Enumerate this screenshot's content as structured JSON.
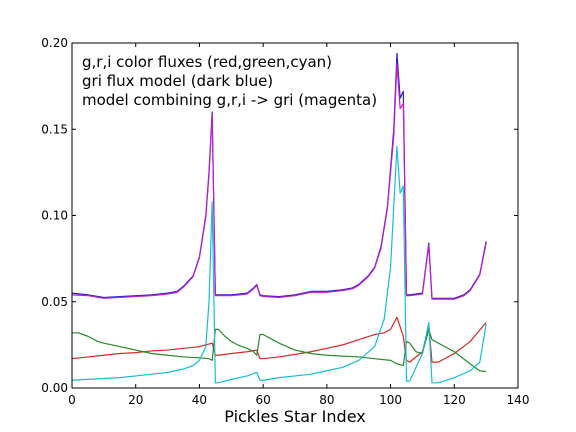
{
  "chart_data": {
    "type": "line",
    "xlabel": "Pickles Star Index",
    "ylabel": "",
    "xlim": [
      0,
      140
    ],
    "ylim": [
      0.0,
      0.2
    ],
    "x_ticks": [
      "0",
      "20",
      "40",
      "60",
      "80",
      "100",
      "120",
      "140"
    ],
    "y_ticks": [
      "0.00",
      "0.05",
      "0.10",
      "0.15",
      "0.20"
    ],
    "grid": false,
    "annotations": [
      "g,r,i color fluxes (red,green,cyan)",
      "gri flux model (dark blue)",
      "model combining g,r,i -> gri (magenta)"
    ],
    "series": [
      {
        "color": "#d62728",
        "points": [
          [
            0,
            0.017
          ],
          [
            5,
            0.018
          ],
          [
            10,
            0.019
          ],
          [
            15,
            0.02
          ],
          [
            20,
            0.0205
          ],
          [
            25,
            0.0215
          ],
          [
            30,
            0.022
          ],
          [
            35,
            0.023
          ],
          [
            38,
            0.0235
          ],
          [
            40,
            0.024
          ],
          [
            42,
            0.025
          ],
          [
            44,
            0.026
          ],
          [
            45,
            0.019
          ],
          [
            46,
            0.019
          ],
          [
            50,
            0.02
          ],
          [
            55,
            0.021
          ],
          [
            58,
            0.022
          ],
          [
            59,
            0.017
          ],
          [
            60,
            0.017
          ],
          [
            65,
            0.018
          ],
          [
            70,
            0.0195
          ],
          [
            75,
            0.021
          ],
          [
            80,
            0.023
          ],
          [
            85,
            0.025
          ],
          [
            90,
            0.028
          ],
          [
            95,
            0.031
          ],
          [
            98,
            0.032
          ],
          [
            100,
            0.034
          ],
          [
            102,
            0.041
          ],
          [
            104,
            0.03
          ],
          [
            105,
            0.016
          ],
          [
            106,
            0.015
          ],
          [
            110,
            0.021
          ],
          [
            112,
            0.036
          ],
          [
            113,
            0.015
          ],
          [
            115,
            0.015
          ],
          [
            120,
            0.02
          ],
          [
            125,
            0.027
          ],
          [
            130,
            0.038
          ]
        ]
      },
      {
        "color": "#2a8a2a",
        "points": [
          [
            0,
            0.032
          ],
          [
            2,
            0.032
          ],
          [
            5,
            0.03
          ],
          [
            8,
            0.027
          ],
          [
            10,
            0.026
          ],
          [
            15,
            0.024
          ],
          [
            20,
            0.022
          ],
          [
            25,
            0.02
          ],
          [
            30,
            0.019
          ],
          [
            35,
            0.018
          ],
          [
            40,
            0.0175
          ],
          [
            43,
            0.017
          ],
          [
            44,
            0.016
          ],
          [
            45,
            0.034
          ],
          [
            46,
            0.034
          ],
          [
            48,
            0.03
          ],
          [
            50,
            0.027
          ],
          [
            52,
            0.025
          ],
          [
            55,
            0.023
          ],
          [
            57,
            0.021
          ],
          [
            58,
            0.019
          ],
          [
            59,
            0.031
          ],
          [
            60,
            0.031
          ],
          [
            63,
            0.028
          ],
          [
            65,
            0.026
          ],
          [
            70,
            0.022
          ],
          [
            75,
            0.02
          ],
          [
            80,
            0.019
          ],
          [
            85,
            0.0185
          ],
          [
            90,
            0.018
          ],
          [
            95,
            0.017
          ],
          [
            100,
            0.016
          ],
          [
            102,
            0.014
          ],
          [
            104,
            0.013
          ],
          [
            105,
            0.027
          ],
          [
            106,
            0.026
          ],
          [
            108,
            0.021
          ],
          [
            110,
            0.02
          ],
          [
            112,
            0.034
          ],
          [
            113,
            0.028
          ],
          [
            115,
            0.026
          ],
          [
            120,
            0.021
          ],
          [
            125,
            0.014
          ],
          [
            128,
            0.01
          ],
          [
            130,
            0.0095
          ]
        ]
      },
      {
        "color": "#17becf",
        "points": [
          [
            0,
            0.0045
          ],
          [
            5,
            0.005
          ],
          [
            10,
            0.0055
          ],
          [
            15,
            0.006
          ],
          [
            20,
            0.007
          ],
          [
            25,
            0.008
          ],
          [
            30,
            0.009
          ],
          [
            35,
            0.011
          ],
          [
            38,
            0.013
          ],
          [
            40,
            0.016
          ],
          [
            42,
            0.024
          ],
          [
            43,
            0.05
          ],
          [
            44,
            0.108
          ],
          [
            45,
            0.003
          ],
          [
            46,
            0.003
          ],
          [
            50,
            0.005
          ],
          [
            55,
            0.007
          ],
          [
            58,
            0.009
          ],
          [
            59,
            0.0045
          ],
          [
            60,
            0.0045
          ],
          [
            65,
            0.006
          ],
          [
            70,
            0.007
          ],
          [
            75,
            0.008
          ],
          [
            80,
            0.01
          ],
          [
            85,
            0.012
          ],
          [
            90,
            0.016
          ],
          [
            95,
            0.024
          ],
          [
            98,
            0.04
          ],
          [
            100,
            0.07
          ],
          [
            102,
            0.14
          ],
          [
            103,
            0.113
          ],
          [
            104,
            0.117
          ],
          [
            105,
            0.004
          ],
          [
            106,
            0.004
          ],
          [
            110,
            0.02
          ],
          [
            112,
            0.038
          ],
          [
            113,
            0.003
          ],
          [
            115,
            0.003
          ],
          [
            120,
            0.006
          ],
          [
            125,
            0.01
          ],
          [
            128,
            0.015
          ],
          [
            130,
            0.037
          ]
        ]
      },
      {
        "color": "#2a1fd0",
        "points": [
          [
            0,
            0.055
          ],
          [
            5,
            0.054
          ],
          [
            10,
            0.0525
          ],
          [
            15,
            0.053
          ],
          [
            20,
            0.0535
          ],
          [
            25,
            0.054
          ],
          [
            30,
            0.055
          ],
          [
            33,
            0.056
          ],
          [
            35,
            0.059
          ],
          [
            38,
            0.065
          ],
          [
            40,
            0.076
          ],
          [
            42,
            0.1
          ],
          [
            43,
            0.125
          ],
          [
            44,
            0.16
          ],
          [
            45,
            0.054
          ],
          [
            46,
            0.054
          ],
          [
            50,
            0.054
          ],
          [
            55,
            0.055
          ],
          [
            57,
            0.058
          ],
          [
            58,
            0.06
          ],
          [
            59,
            0.054
          ],
          [
            60,
            0.0535
          ],
          [
            65,
            0.053
          ],
          [
            70,
            0.054
          ],
          [
            75,
            0.056
          ],
          [
            80,
            0.056
          ],
          [
            85,
            0.057
          ],
          [
            88,
            0.058
          ],
          [
            90,
            0.06
          ],
          [
            93,
            0.065
          ],
          [
            95,
            0.07
          ],
          [
            97,
            0.082
          ],
          [
            99,
            0.105
          ],
          [
            101,
            0.15
          ],
          [
            102,
            0.194
          ],
          [
            103,
            0.168
          ],
          [
            104,
            0.172
          ],
          [
            105,
            0.054
          ],
          [
            106,
            0.054
          ],
          [
            110,
            0.055
          ],
          [
            112,
            0.084
          ],
          [
            113,
            0.052
          ],
          [
            115,
            0.052
          ],
          [
            120,
            0.052
          ],
          [
            123,
            0.054
          ],
          [
            125,
            0.057
          ],
          [
            128,
            0.066
          ],
          [
            130,
            0.085
          ]
        ]
      },
      {
        "color": "#c020c8",
        "points": [
          [
            0,
            0.054
          ],
          [
            5,
            0.0535
          ],
          [
            10,
            0.052
          ],
          [
            15,
            0.0525
          ],
          [
            20,
            0.053
          ],
          [
            25,
            0.0535
          ],
          [
            30,
            0.0545
          ],
          [
            33,
            0.0555
          ],
          [
            35,
            0.0585
          ],
          [
            38,
            0.0645
          ],
          [
            40,
            0.0755
          ],
          [
            42,
            0.099
          ],
          [
            43,
            0.124
          ],
          [
            44,
            0.158
          ],
          [
            45,
            0.0535
          ],
          [
            46,
            0.0535
          ],
          [
            50,
            0.0535
          ],
          [
            55,
            0.0545
          ],
          [
            57,
            0.0575
          ],
          [
            58,
            0.0595
          ],
          [
            59,
            0.0535
          ],
          [
            60,
            0.053
          ],
          [
            65,
            0.0525
          ],
          [
            70,
            0.0535
          ],
          [
            75,
            0.0555
          ],
          [
            80,
            0.0555
          ],
          [
            85,
            0.0565
          ],
          [
            88,
            0.0575
          ],
          [
            90,
            0.0595
          ],
          [
            93,
            0.0645
          ],
          [
            95,
            0.0695
          ],
          [
            97,
            0.081
          ],
          [
            99,
            0.104
          ],
          [
            101,
            0.146
          ],
          [
            102,
            0.188
          ],
          [
            103,
            0.162
          ],
          [
            104,
            0.165
          ],
          [
            105,
            0.0535
          ],
          [
            106,
            0.0535
          ],
          [
            110,
            0.0545
          ],
          [
            112,
            0.083
          ],
          [
            113,
            0.0515
          ],
          [
            115,
            0.0515
          ],
          [
            120,
            0.0515
          ],
          [
            123,
            0.0535
          ],
          [
            125,
            0.0565
          ],
          [
            128,
            0.0655
          ],
          [
            130,
            0.084
          ]
        ]
      }
    ]
  }
}
